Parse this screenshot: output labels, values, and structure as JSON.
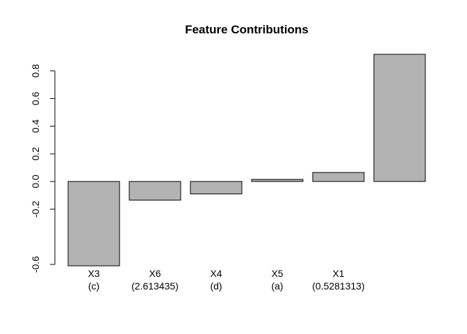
{
  "chart_data": {
    "type": "bar",
    "title": "Feature Contributions",
    "xlabel": "",
    "ylabel": "",
    "ylim": [
      -0.62,
      0.92
    ],
    "grid": false,
    "bar_color": "#b3b3b3",
    "border_color": "#000000",
    "yticks": [
      "-0.6",
      "-0.2",
      "0.0",
      "0.2",
      "0.4",
      "0.6",
      "0.8"
    ],
    "ytick_values": [
      -0.6,
      -0.2,
      0.0,
      0.2,
      0.4,
      0.6,
      0.8
    ],
    "bars": [
      {
        "name": "X3",
        "detail": "(c)",
        "value": -0.61
      },
      {
        "name": "X6",
        "detail": "(2.613435)",
        "value": -0.135
      },
      {
        "name": "X4",
        "detail": "(d)",
        "value": -0.09
      },
      {
        "name": "X5",
        "detail": "(a)",
        "value": 0.015
      },
      {
        "name": "X1",
        "detail": "(0.5281313)",
        "value": 0.065
      },
      {
        "name": "",
        "detail": "",
        "value": 0.92
      }
    ]
  }
}
